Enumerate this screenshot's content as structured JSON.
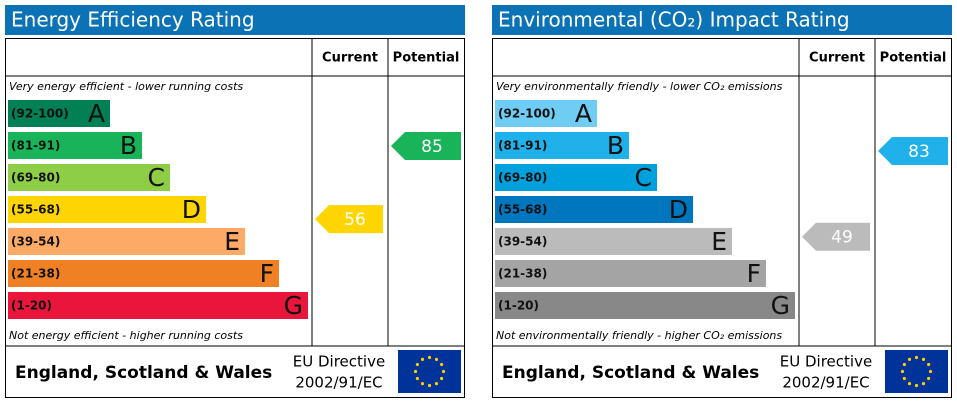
{
  "panels": [
    {
      "title": "Energy Efficiency Rating",
      "headers": [
        "Current",
        "Potential"
      ],
      "top_note": "Very energy efficient - lower running costs",
      "bands": [
        {
          "range": "(92-100)",
          "letter": "A",
          "color": "#008054"
        },
        {
          "range": "(81-91)",
          "letter": "B",
          "color": "#19b459"
        },
        {
          "range": "(69-80)",
          "letter": "C",
          "color": "#8dce46"
        },
        {
          "range": "(55-68)",
          "letter": "D",
          "color": "#ffd500"
        },
        {
          "range": "(39-54)",
          "letter": "E",
          "color": "#fcaa65"
        },
        {
          "range": "(21-38)",
          "letter": "F",
          "color": "#ef8023"
        },
        {
          "range": "(1-20)",
          "letter": "G",
          "color": "#e9153b"
        }
      ],
      "bottom_note": "Not energy efficient - higher running costs",
      "current": 56,
      "current_color": "#ffd500",
      "potential": 85,
      "potential_color": "#19b459",
      "footer": {
        "region": "England, Scotland & Wales",
        "directive": "EU Directive",
        "code": "2002/91/EC"
      }
    },
    {
      "title": "Environmental (CO₂) Impact Rating",
      "headers": [
        "Current",
        "Potential"
      ],
      "top_note": "Very environmentally friendly - lower CO₂ emissions",
      "bands": [
        {
          "range": "(92-100)",
          "letter": "A",
          "color": "#6fcdf3"
        },
        {
          "range": "(81-91)",
          "letter": "B",
          "color": "#21b1ea"
        },
        {
          "range": "(69-80)",
          "letter": "C",
          "color": "#00a0dd"
        },
        {
          "range": "(55-68)",
          "letter": "D",
          "color": "#0076bf"
        },
        {
          "range": "(39-54)",
          "letter": "E",
          "color": "#bbbbbb"
        },
        {
          "range": "(21-38)",
          "letter": "F",
          "color": "#a4a4a4"
        },
        {
          "range": "(1-20)",
          "letter": "G",
          "color": "#888888"
        }
      ],
      "bottom_note": "Not environmentally friendly - higher CO₂ emissions",
      "current": 49,
      "current_color": "#bbbbbb",
      "potential": 83,
      "potential_color": "#21b1ea",
      "footer": {
        "region": "England, Scotland & Wales",
        "directive": "EU Directive",
        "code": "2002/91/EC"
      }
    }
  ]
}
